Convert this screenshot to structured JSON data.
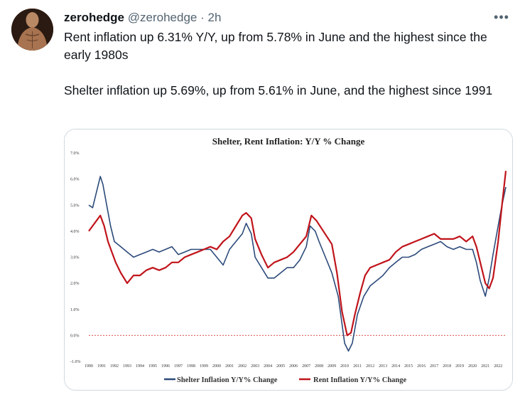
{
  "tweet": {
    "author_name": "zerohedge",
    "handle": "@zerohedge",
    "separator": "·",
    "time": "2h",
    "more_icon": "more-horizontal-icon",
    "more_label": "•••",
    "paragraphs": [
      "Rent inflation up 6.31% Y/Y, up from 5.78% in June and the highest since the early 1980s",
      "Shelter inflation up 5.69%, up from 5.61% in June, and the highest since 1991"
    ]
  },
  "chart_data": {
    "type": "line",
    "title": "Shelter, Rent Inflation: Y/Y % Change",
    "xlabel": "",
    "ylabel": "",
    "ylim": [
      -1.0,
      7.0
    ],
    "xlim": [
      1990,
      2022.6
    ],
    "y_ticks": [
      "-1.0%",
      "0.0%",
      "1.0%",
      "2.0%",
      "3.0%",
      "4.0%",
      "5.0%",
      "6.0%",
      "7.0%"
    ],
    "x_ticks": [
      "1990",
      "1991",
      "1992",
      "1993",
      "1994",
      "1995",
      "1996",
      "1997",
      "1998",
      "1999",
      "2000",
      "2001",
      "2002",
      "2003",
      "2004",
      "2005",
      "2006",
      "2007",
      "2008",
      "2009",
      "2010",
      "2011",
      "2012",
      "2013",
      "2014",
      "2015",
      "2016",
      "2017",
      "2018",
      "2019",
      "2020",
      "2021",
      "2022"
    ],
    "reference_line": 0.0,
    "grid": false,
    "legend_position": "bottom",
    "series": [
      {
        "name": "Shelter Inflation Y/Y% Change",
        "color": "#2c4a7a",
        "x": [
          1990.0,
          1990.3,
          1990.6,
          1990.9,
          1991.1,
          1991.4,
          1991.7,
          1992.0,
          1992.5,
          1993.0,
          1993.5,
          1994.0,
          1994.5,
          1995.0,
          1995.5,
          1996.0,
          1996.5,
          1997.0,
          1997.5,
          1998.0,
          1998.5,
          1999.0,
          1999.5,
          2000.0,
          2000.5,
          2001.0,
          2001.5,
          2002.0,
          2002.3,
          2002.7,
          2003.0,
          2003.5,
          2004.0,
          2004.5,
          2005.0,
          2005.5,
          2006.0,
          2006.5,
          2007.0,
          2007.3,
          2007.7,
          2008.0,
          2008.5,
          2009.0,
          2009.5,
          2010.0,
          2010.3,
          2010.6,
          2011.0,
          2011.5,
          2012.0,
          2012.5,
          2013.0,
          2013.5,
          2014.0,
          2014.5,
          2015.0,
          2015.5,
          2016.0,
          2016.5,
          2017.0,
          2017.5,
          2018.0,
          2018.5,
          2019.0,
          2019.5,
          2020.0,
          2020.3,
          2020.6,
          2021.0,
          2021.3,
          2021.6,
          2022.0,
          2022.3,
          2022.6
        ],
        "values": [
          5.0,
          4.9,
          5.5,
          6.1,
          5.8,
          5.0,
          4.2,
          3.6,
          3.4,
          3.2,
          3.0,
          3.1,
          3.2,
          3.3,
          3.2,
          3.3,
          3.4,
          3.1,
          3.2,
          3.3,
          3.3,
          3.3,
          3.3,
          3.0,
          2.7,
          3.3,
          3.6,
          3.9,
          4.3,
          3.9,
          3.0,
          2.6,
          2.2,
          2.2,
          2.4,
          2.6,
          2.6,
          2.9,
          3.4,
          4.2,
          4.0,
          3.6,
          3.0,
          2.4,
          1.5,
          -0.3,
          -0.6,
          -0.3,
          0.8,
          1.5,
          1.9,
          2.1,
          2.3,
          2.6,
          2.8,
          3.0,
          3.0,
          3.1,
          3.3,
          3.4,
          3.5,
          3.6,
          3.4,
          3.3,
          3.4,
          3.3,
          3.3,
          2.8,
          2.1,
          1.5,
          2.2,
          3.1,
          4.2,
          5.0,
          5.69
        ]
      },
      {
        "name": "Rent Inflation Y/Y% Change",
        "color": "#c0141b",
        "x": [
          1990.0,
          1990.3,
          1990.6,
          1990.9,
          1991.2,
          1991.5,
          1991.8,
          1992.1,
          1992.5,
          1993.0,
          1993.5,
          1994.0,
          1994.5,
          1995.0,
          1995.5,
          1996.0,
          1996.5,
          1997.0,
          1997.5,
          1998.0,
          1998.5,
          1999.0,
          1999.5,
          2000.0,
          2000.5,
          2001.0,
          2001.5,
          2002.0,
          2002.3,
          2002.7,
          2003.0,
          2003.5,
          2004.0,
          2004.5,
          2005.0,
          2005.5,
          2006.0,
          2006.5,
          2007.0,
          2007.4,
          2007.8,
          2008.2,
          2008.6,
          2009.0,
          2009.4,
          2009.8,
          2010.2,
          2010.5,
          2010.8,
          2011.2,
          2011.6,
          2012.0,
          2012.5,
          2013.0,
          2013.5,
          2014.0,
          2014.5,
          2015.0,
          2015.5,
          2016.0,
          2016.5,
          2017.0,
          2017.5,
          2018.0,
          2018.5,
          2019.0,
          2019.5,
          2020.0,
          2020.3,
          2020.6,
          2021.0,
          2021.3,
          2021.6,
          2022.0,
          2022.3,
          2022.6
        ],
        "values": [
          4.0,
          4.2,
          4.4,
          4.6,
          4.2,
          3.6,
          3.2,
          2.8,
          2.4,
          2.0,
          2.3,
          2.3,
          2.5,
          2.6,
          2.5,
          2.6,
          2.8,
          2.8,
          3.0,
          3.1,
          3.2,
          3.3,
          3.4,
          3.3,
          3.6,
          3.8,
          4.2,
          4.6,
          4.7,
          4.5,
          3.7,
          3.1,
          2.6,
          2.8,
          2.9,
          3.0,
          3.2,
          3.5,
          3.8,
          4.6,
          4.4,
          4.1,
          3.8,
          3.5,
          2.4,
          0.9,
          0.0,
          0.1,
          0.8,
          1.6,
          2.3,
          2.6,
          2.7,
          2.8,
          2.9,
          3.2,
          3.4,
          3.5,
          3.6,
          3.7,
          3.8,
          3.9,
          3.7,
          3.7,
          3.7,
          3.8,
          3.6,
          3.8,
          3.4,
          2.8,
          2.0,
          1.8,
          2.2,
          3.6,
          5.0,
          6.31
        ]
      }
    ]
  }
}
